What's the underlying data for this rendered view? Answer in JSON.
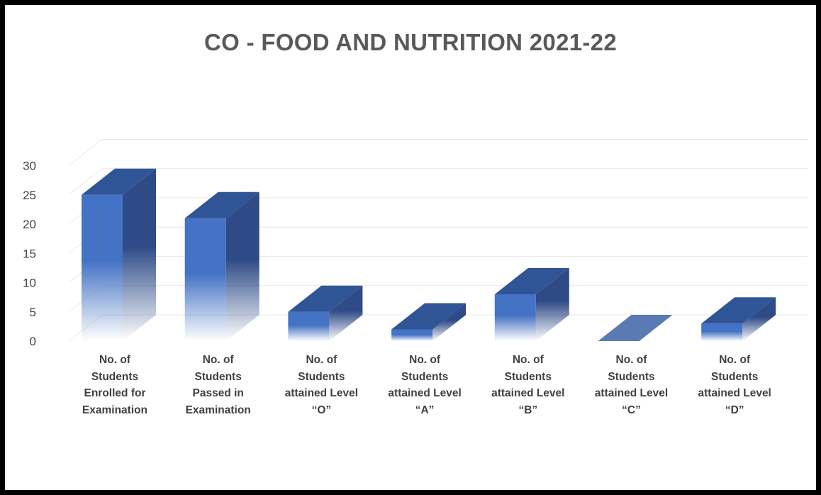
{
  "chart_data": {
    "type": "bar",
    "title": "CO - FOOD AND NUTRITION 2021-22",
    "categories": [
      [
        "No. of",
        "Students",
        "Enrolled for",
        "Examination"
      ],
      [
        "No. of",
        "Students",
        "Passed in",
        "Examination"
      ],
      [
        "No. of",
        "Students",
        "attained Level",
        "“O”"
      ],
      [
        "No. of",
        "Students",
        "attained Level",
        "“A”"
      ],
      [
        "No. of",
        "Students",
        "attained Level",
        "“B”"
      ],
      [
        "No. of",
        "Students",
        "attained Level",
        "“C”"
      ],
      [
        "No. of",
        "Students",
        "attained Level",
        "“D”"
      ]
    ],
    "values": [
      25,
      21,
      5,
      2,
      8,
      0,
      3
    ],
    "ylim": [
      0,
      30
    ],
    "yticks": [
      "0",
      "5",
      "10",
      "15",
      "20",
      "25",
      "30"
    ],
    "xlabel": "",
    "ylabel": "",
    "grid": true,
    "legend": "none",
    "colors": {
      "front": "#4472c4",
      "side": "#2e4a87",
      "top": "#2f5597",
      "zero_face": "#5a7ab4",
      "grid": "#e8e8e8"
    }
  }
}
